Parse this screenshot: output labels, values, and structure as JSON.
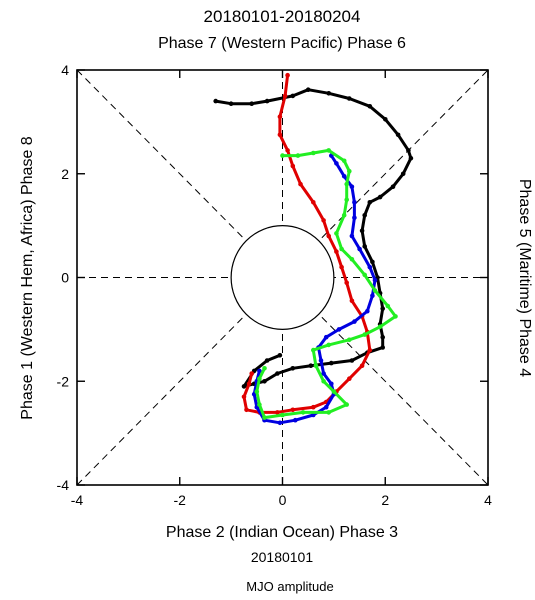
{
  "chart_data": {
    "type": "line",
    "title": "20180101-20180204",
    "top_label": "Phase 7 (Western Pacific) Phase 6",
    "bottom_label": "Phase 2 (Indian Ocean) Phase 3",
    "left_label": "Phase 1 (Western Hem, Africa) Phase 8",
    "right_label": "Phase 5 (Maritime) Phase 4",
    "start_date_label": "20180101",
    "footer_label": "MJO amplitude",
    "xlim": [
      -4,
      4
    ],
    "ylim": [
      -4,
      4
    ],
    "x_ticks": [
      -4,
      -2,
      0,
      2,
      4
    ],
    "y_ticks": [
      -4,
      -2,
      0,
      2,
      4
    ],
    "x_tick_labels": [
      "-4",
      "-2",
      "0",
      "2",
      "4"
    ],
    "y_tick_labels": [
      "-4",
      "-2",
      "0",
      "2",
      "4"
    ],
    "unit_circle_radius": 1,
    "series": [
      {
        "color": "#000000",
        "points": [
          [
            -1.3,
            3.4
          ],
          [
            -1.0,
            3.35
          ],
          [
            -0.6,
            3.35
          ],
          [
            -0.3,
            3.4
          ],
          [
            0.2,
            3.5
          ],
          [
            0.5,
            3.62
          ],
          [
            0.9,
            3.55
          ],
          [
            1.3,
            3.45
          ],
          [
            1.7,
            3.3
          ],
          [
            2.0,
            3.05
          ],
          [
            2.25,
            2.75
          ],
          [
            2.45,
            2.45
          ],
          [
            2.5,
            2.3
          ],
          [
            2.35,
            2.0
          ],
          [
            2.15,
            1.75
          ],
          [
            1.9,
            1.55
          ],
          [
            1.7,
            1.45
          ],
          [
            1.6,
            1.2
          ],
          [
            1.55,
            0.9
          ],
          [
            1.6,
            0.6
          ],
          [
            1.75,
            0.3
          ],
          [
            1.85,
            0.0
          ],
          [
            1.9,
            -0.3
          ],
          [
            1.95,
            -0.6
          ],
          [
            1.9,
            -0.9
          ],
          [
            1.95,
            -1.15
          ],
          [
            1.95,
            -1.35
          ],
          [
            1.65,
            -1.45
          ],
          [
            1.35,
            -1.6
          ],
          [
            0.95,
            -1.65
          ],
          [
            0.55,
            -1.7
          ],
          [
            0.2,
            -1.75
          ],
          [
            -0.1,
            -1.85
          ],
          [
            -0.35,
            -2.0
          ],
          [
            -0.55,
            -2.05
          ],
          [
            -0.75,
            -2.1
          ],
          [
            -0.55,
            -1.8
          ],
          [
            -0.3,
            -1.6
          ],
          [
            -0.05,
            -1.5
          ]
        ]
      },
      {
        "color": "#e00000",
        "points": [
          [
            0.1,
            3.9
          ],
          [
            0.05,
            3.5
          ],
          [
            -0.05,
            3.1
          ],
          [
            -0.05,
            2.75
          ],
          [
            0.1,
            2.45
          ],
          [
            0.2,
            2.15
          ],
          [
            0.35,
            1.8
          ],
          [
            0.6,
            1.45
          ],
          [
            0.8,
            1.1
          ],
          [
            0.9,
            0.8
          ],
          [
            1.05,
            0.5
          ],
          [
            1.15,
            0.2
          ],
          [
            1.25,
            -0.1
          ],
          [
            1.35,
            -0.45
          ],
          [
            1.55,
            -0.75
          ],
          [
            1.65,
            -1.05
          ],
          [
            1.7,
            -1.4
          ],
          [
            1.55,
            -1.7
          ],
          [
            1.3,
            -1.95
          ],
          [
            1.05,
            -2.2
          ],
          [
            0.85,
            -2.4
          ],
          [
            0.6,
            -2.5
          ],
          [
            0.2,
            -2.55
          ],
          [
            -0.1,
            -2.6
          ],
          [
            -0.45,
            -2.6
          ],
          [
            -0.7,
            -2.55
          ],
          [
            -0.75,
            -2.3
          ],
          [
            -0.65,
            -2.05
          ],
          [
            -0.6,
            -1.85
          ]
        ]
      },
      {
        "color": "#0000e0",
        "points": [
          [
            0.95,
            2.35
          ],
          [
            1.05,
            2.2
          ],
          [
            1.2,
            1.95
          ],
          [
            1.35,
            1.75
          ],
          [
            1.4,
            1.45
          ],
          [
            1.4,
            1.15
          ],
          [
            1.35,
            0.8
          ],
          [
            1.5,
            0.55
          ],
          [
            1.7,
            0.2
          ],
          [
            1.8,
            -0.05
          ],
          [
            1.75,
            -0.35
          ],
          [
            1.65,
            -0.65
          ],
          [
            1.4,
            -0.85
          ],
          [
            1.1,
            -1.0
          ],
          [
            0.85,
            -1.15
          ],
          [
            0.7,
            -1.35
          ],
          [
            0.75,
            -1.6
          ],
          [
            0.8,
            -1.85
          ],
          [
            0.95,
            -2.05
          ],
          [
            1.0,
            -2.25
          ],
          [
            0.85,
            -2.5
          ],
          [
            0.6,
            -2.65
          ],
          [
            0.25,
            -2.75
          ],
          [
            -0.05,
            -2.8
          ],
          [
            -0.35,
            -2.75
          ],
          [
            -0.5,
            -2.5
          ],
          [
            -0.55,
            -2.25
          ],
          [
            -0.5,
            -2.0
          ],
          [
            -0.45,
            -1.8
          ]
        ]
      },
      {
        "color": "#22ee22",
        "points": [
          [
            0.0,
            2.35
          ],
          [
            0.3,
            2.35
          ],
          [
            0.6,
            2.4
          ],
          [
            0.9,
            2.45
          ],
          [
            1.2,
            2.25
          ],
          [
            1.3,
            2.05
          ],
          [
            1.25,
            1.8
          ],
          [
            1.25,
            1.5
          ],
          [
            1.2,
            1.2
          ],
          [
            1.05,
            0.85
          ],
          [
            1.15,
            0.55
          ],
          [
            1.35,
            0.35
          ],
          [
            1.6,
            0.05
          ],
          [
            1.8,
            -0.25
          ],
          [
            2.05,
            -0.55
          ],
          [
            2.2,
            -0.75
          ],
          [
            1.9,
            -0.95
          ],
          [
            1.6,
            -1.1
          ],
          [
            1.3,
            -1.2
          ],
          [
            0.9,
            -1.3
          ],
          [
            0.6,
            -1.4
          ],
          [
            0.65,
            -1.7
          ],
          [
            0.8,
            -2.0
          ],
          [
            1.0,
            -2.2
          ],
          [
            1.25,
            -2.45
          ],
          [
            0.9,
            -2.6
          ],
          [
            0.4,
            -2.6
          ],
          [
            0.0,
            -2.65
          ],
          [
            -0.35,
            -2.7
          ],
          [
            -0.45,
            -2.45
          ],
          [
            -0.5,
            -2.2
          ],
          [
            -0.45,
            -1.95
          ],
          [
            -0.35,
            -1.75
          ]
        ]
      }
    ]
  }
}
